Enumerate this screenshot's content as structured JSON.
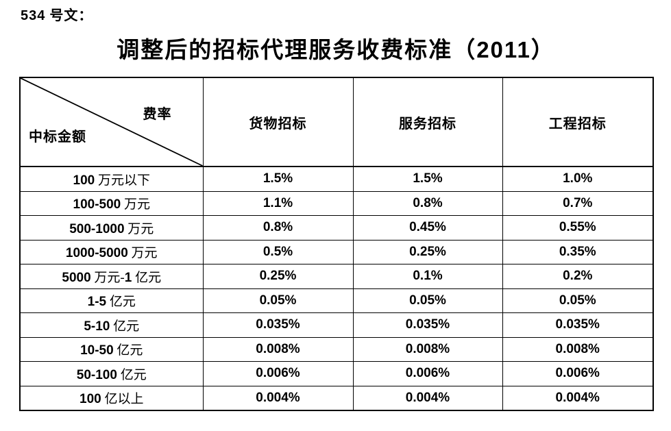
{
  "page": {
    "doc_number": "534 号文：",
    "title": "调整后的招标代理服务收费标准（2011）"
  },
  "table": {
    "corner": {
      "top_right": "费率",
      "bottom_left": "中标金额"
    },
    "columns": [
      "货物招标",
      "服务招标",
      "工程招标"
    ],
    "rows": [
      {
        "label": "100 万元以下",
        "values": [
          "1.5%",
          "1.5%",
          "1.0%"
        ]
      },
      {
        "label": "100-500 万元",
        "values": [
          "1.1%",
          "0.8%",
          "0.7%"
        ]
      },
      {
        "label": "500-1000 万元",
        "values": [
          "0.8%",
          "0.45%",
          "0.55%"
        ]
      },
      {
        "label": "1000-5000 万元",
        "values": [
          "0.5%",
          "0.25%",
          "0.35%"
        ]
      },
      {
        "label": "5000 万元-1 亿元",
        "values": [
          "0.25%",
          "0.1%",
          "0.2%"
        ]
      },
      {
        "label": "1-5 亿元",
        "values": [
          "0.05%",
          "0.05%",
          "0.05%"
        ]
      },
      {
        "label": "5-10 亿元",
        "values": [
          "0.035%",
          "0.035%",
          "0.035%"
        ]
      },
      {
        "label": "10-50 亿元",
        "values": [
          "0.008%",
          "0.008%",
          "0.008%"
        ]
      },
      {
        "label": "50-100 亿元",
        "values": [
          "0.006%",
          "0.006%",
          "0.006%"
        ]
      },
      {
        "label": "100 亿以上",
        "values": [
          "0.004%",
          "0.004%",
          "0.004%"
        ]
      }
    ],
    "colors": {
      "text": "#000000",
      "border": "#000000",
      "background": "#ffffff"
    }
  }
}
